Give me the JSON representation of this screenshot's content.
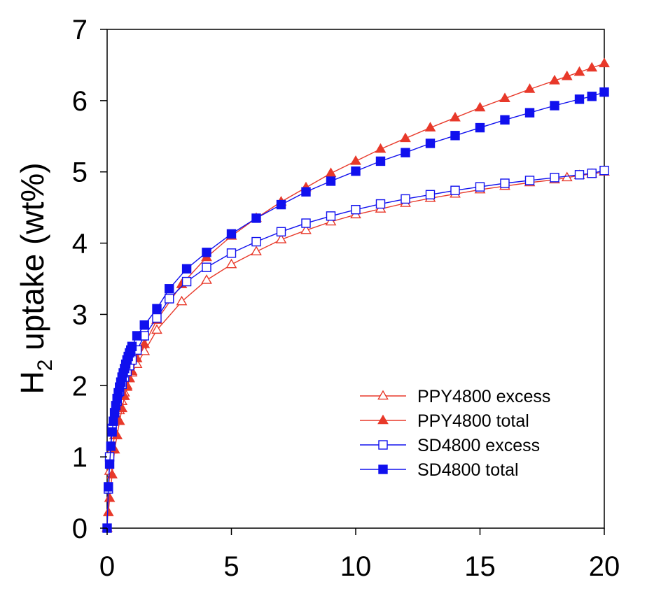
{
  "chart_data": {
    "type": "line",
    "title": "",
    "xlabel": "",
    "ylabel_main": "H",
    "ylabel_sub": "2",
    "ylabel_rest": " uptake (wt%)",
    "xlim": [
      0,
      20
    ],
    "ylim": [
      0,
      7
    ],
    "xticks": [
      0,
      5,
      10,
      15,
      20
    ],
    "yticks": [
      0,
      1,
      2,
      3,
      4,
      5,
      6,
      7
    ],
    "grid": false,
    "legend_position": "lower-right",
    "series": [
      {
        "name": "PPY4800 excess",
        "color": "#e8392a",
        "marker": "triangle",
        "filled": false,
        "x": [
          0,
          0.1,
          0.2,
          0.3,
          0.4,
          0.5,
          0.6,
          0.7,
          0.8,
          0.9,
          1.0,
          1.2,
          1.5,
          2.0,
          3.0,
          4.0,
          5.0,
          6.0,
          7.0,
          8.0,
          9.0,
          10.0,
          11.0,
          12.0,
          13.0,
          14.0,
          15.0,
          16.0,
          17.0,
          18.0,
          18.5,
          19.0,
          19.5,
          20.0
        ],
        "y": [
          0,
          0.8,
          1.1,
          1.3,
          1.5,
          1.65,
          1.78,
          1.9,
          2.0,
          2.1,
          2.18,
          2.3,
          2.48,
          2.78,
          3.18,
          3.48,
          3.7,
          3.88,
          4.05,
          4.18,
          4.3,
          4.4,
          4.48,
          4.56,
          4.63,
          4.69,
          4.75,
          4.8,
          4.85,
          4.89,
          4.92,
          4.95,
          4.97,
          5.0
        ]
      },
      {
        "name": "PPY4800 total",
        "color": "#e8392a",
        "marker": "triangle",
        "filled": true,
        "x": [
          0.05,
          0.1,
          0.2,
          0.3,
          0.4,
          0.5,
          0.6,
          0.7,
          0.8,
          0.9,
          1.0,
          1.2,
          1.5,
          2.0,
          3.0,
          4.0,
          5.0,
          6.0,
          7.0,
          8.0,
          9.0,
          10.0,
          11.0,
          12.0,
          13.0,
          14.0,
          15.0,
          16.0,
          17.0,
          18.0,
          18.5,
          19.0,
          19.5,
          20.0
        ],
        "y": [
          0.22,
          0.42,
          0.75,
          1.1,
          1.3,
          1.5,
          1.68,
          1.85,
          1.98,
          2.1,
          2.2,
          2.38,
          2.58,
          2.92,
          3.42,
          3.8,
          4.1,
          4.35,
          4.58,
          4.78,
          4.98,
          5.15,
          5.32,
          5.47,
          5.62,
          5.76,
          5.9,
          6.03,
          6.16,
          6.28,
          6.34,
          6.4,
          6.46,
          6.52
        ]
      },
      {
        "name": "SD4800 excess",
        "color": "#1010ee",
        "marker": "square",
        "filled": false,
        "x": [
          0.05,
          0.1,
          0.2,
          0.3,
          0.4,
          0.5,
          0.6,
          0.7,
          0.8,
          0.9,
          1.0,
          1.2,
          1.5,
          2.0,
          2.5,
          3.2,
          4.0,
          5.0,
          6.0,
          7.0,
          8.0,
          9.0,
          10.0,
          11.0,
          12.0,
          13.0,
          14.0,
          15.0,
          16.0,
          17.0,
          18.0,
          19.0,
          19.5,
          20.0
        ],
        "y": [
          0.55,
          1.0,
          1.4,
          1.62,
          1.78,
          1.92,
          2.02,
          2.12,
          2.2,
          2.28,
          2.36,
          2.5,
          2.7,
          2.95,
          3.22,
          3.46,
          3.66,
          3.86,
          4.02,
          4.16,
          4.28,
          4.38,
          4.47,
          4.55,
          4.62,
          4.68,
          4.74,
          4.79,
          4.84,
          4.88,
          4.92,
          4.96,
          4.98,
          5.02
        ]
      },
      {
        "name": "SD4800 total",
        "color": "#1010ee",
        "marker": "square",
        "filled": true,
        "x": [
          0,
          0.05,
          0.1,
          0.15,
          0.2,
          0.25,
          0.3,
          0.35,
          0.4,
          0.45,
          0.5,
          0.55,
          0.6,
          0.65,
          0.7,
          0.75,
          0.8,
          0.85,
          0.9,
          0.95,
          1.0,
          1.2,
          1.5,
          2.0,
          2.5,
          3.2,
          4.0,
          5.0,
          6.0,
          7.0,
          8.0,
          9.0,
          10.0,
          11.0,
          12.0,
          13.0,
          14.0,
          15.0,
          16.0,
          17.0,
          18.0,
          19.0,
          19.5,
          20.0
        ],
        "y": [
          0,
          0.58,
          0.9,
          1.15,
          1.35,
          1.5,
          1.62,
          1.72,
          1.82,
          1.9,
          1.98,
          2.05,
          2.12,
          2.18,
          2.24,
          2.3,
          2.36,
          2.41,
          2.46,
          2.5,
          2.55,
          2.7,
          2.85,
          3.08,
          3.36,
          3.64,
          3.87,
          4.13,
          4.35,
          4.54,
          4.72,
          4.87,
          5.01,
          5.15,
          5.27,
          5.4,
          5.51,
          5.62,
          5.73,
          5.83,
          5.93,
          6.02,
          6.06,
          6.12
        ]
      }
    ]
  }
}
